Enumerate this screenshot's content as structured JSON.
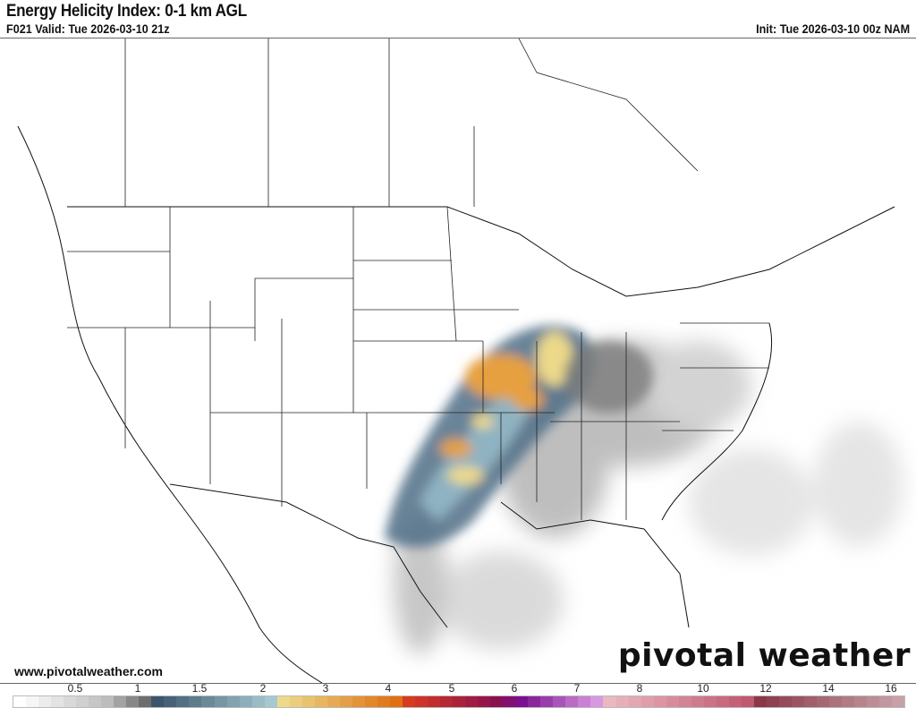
{
  "header": {
    "title": "Energy Helicity Index: 0-1 km AGL",
    "valid": "F021 Valid: Tue 2026-03-10 21z",
    "init": "Init: Tue 2026-03-10 00z NAM"
  },
  "footer": {
    "website": "www.pivotalweather.com",
    "brand": "pivotal weather"
  },
  "colorbar": {
    "tick_labels": [
      "0.5",
      "1",
      "1.5",
      "2",
      "3",
      "4",
      "5",
      "6",
      "7",
      "8",
      "10",
      "12",
      "14",
      "16"
    ],
    "color_stops": [
      "#ffffff",
      "#bdbdbd",
      "#6e6e6e",
      "#3b556d",
      "#a5c9d1",
      "#ecd98a",
      "#e07010",
      "#d83a20",
      "#8b1050",
      "#7a1090",
      "#d898e0",
      "#eab8c0",
      "#c05870",
      "#8a3848",
      "#c8a0a8"
    ]
  }
}
